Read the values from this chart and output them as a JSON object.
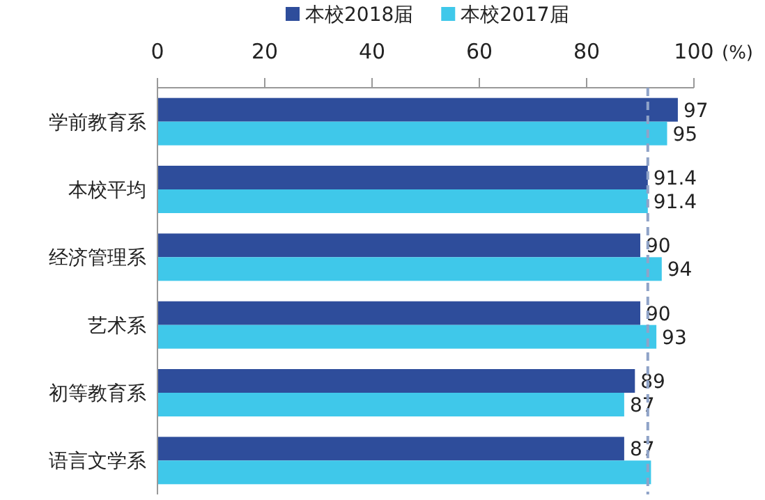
{
  "chart_data": {
    "type": "bar",
    "orientation": "horizontal",
    "categories": [
      "学前教育系",
      "本校平均",
      "经济管理系",
      "艺术系",
      "初等教育系",
      "语言文学系"
    ],
    "series": [
      {
        "name": "本校2018届",
        "color": "#2e4d9b",
        "values": [
          97,
          91.4,
          90,
          90,
          89,
          87
        ],
        "value_labels": [
          "97",
          "91.4",
          "90",
          "90",
          "89",
          "87"
        ]
      },
      {
        "name": "本校2017届",
        "color": "#3fc8ea",
        "values": [
          95,
          91.4,
          94,
          93,
          87,
          92
        ],
        "value_labels": [
          "95",
          "91.4",
          "94",
          "93",
          "87",
          null
        ]
      }
    ],
    "xlim": [
      0,
      100
    ],
    "xticks": [
      0,
      20,
      40,
      60,
      80,
      100
    ],
    "xlabel": "(%)",
    "ref_lines": [
      {
        "axis": "x",
        "value": 91.4,
        "color": "#8fa3c8",
        "line_style": "dashed"
      }
    ],
    "legend": "top",
    "grid": false
  }
}
